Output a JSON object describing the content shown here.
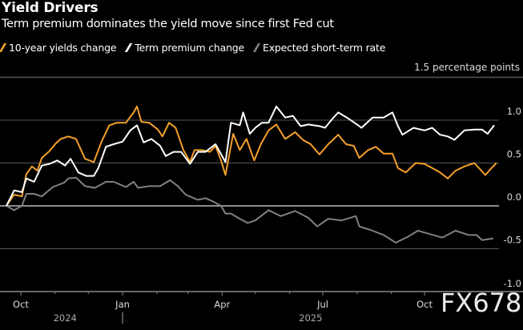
{
  "chart_data": {
    "type": "line",
    "title": "Yield Drivers",
    "subtitle": "Term premium dominates the yield move since first Fed cut",
    "ylabel": "1.5 percentage points",
    "ylim": [
      -1.0,
      1.5
    ],
    "yticks": [
      {
        "v": 1.0,
        "label": "1.0"
      },
      {
        "v": 0.5,
        "label": "0.5"
      },
      {
        "v": 0.0,
        "label": "0.0"
      },
      {
        "v": -0.5,
        "label": "-0.5"
      },
      {
        "v": -1.0,
        "label": "-1.0"
      }
    ],
    "xticks": [
      {
        "date": "2024-10-01",
        "label": "Oct"
      },
      {
        "date": "2025-01-01",
        "label": "Jan"
      },
      {
        "date": "2025-04-01",
        "label": "Apr"
      },
      {
        "date": "2025-07-01",
        "label": "Jul"
      },
      {
        "date": "2025-10-01",
        "label": "Oct"
      }
    ],
    "year_labels": [
      {
        "date": "2024-11-10",
        "label": "2024"
      },
      {
        "date": "2025-06-20",
        "label": "2025"
      }
    ],
    "grid": true,
    "legend_placement": "top-left",
    "series": [
      {
        "name": "10-year yields change",
        "color": "#f5a02a",
        "points": [
          [
            "2024-09-18",
            0.0
          ],
          [
            "2024-09-25",
            0.13
          ],
          [
            "2024-10-02",
            0.11
          ],
          [
            "2024-10-06",
            0.37
          ],
          [
            "2024-10-11",
            0.46
          ],
          [
            "2024-10-16",
            0.41
          ],
          [
            "2024-10-20",
            0.56
          ],
          [
            "2024-10-27",
            0.64
          ],
          [
            "2024-11-01",
            0.72
          ],
          [
            "2024-11-06",
            0.78
          ],
          [
            "2024-11-13",
            0.81
          ],
          [
            "2024-11-20",
            0.78
          ],
          [
            "2024-11-28",
            0.55
          ],
          [
            "2024-12-06",
            0.51
          ],
          [
            "2024-12-13",
            0.75
          ],
          [
            "2024-12-20",
            0.94
          ],
          [
            "2024-12-27",
            0.97
          ],
          [
            "2025-01-04",
            0.97
          ],
          [
            "2025-01-11",
            1.09
          ],
          [
            "2025-01-14",
            1.16
          ],
          [
            "2025-01-18",
            0.98
          ],
          [
            "2025-01-25",
            0.97
          ],
          [
            "2025-02-02",
            0.89
          ],
          [
            "2025-02-06",
            0.81
          ],
          [
            "2025-02-12",
            0.97
          ],
          [
            "2025-02-18",
            0.91
          ],
          [
            "2025-02-25",
            0.65
          ],
          [
            "2025-03-03",
            0.51
          ],
          [
            "2025-03-07",
            0.65
          ],
          [
            "2025-03-14",
            0.65
          ],
          [
            "2025-03-21",
            0.63
          ],
          [
            "2025-03-26",
            0.7
          ],
          [
            "2025-03-31",
            0.53
          ],
          [
            "2025-04-04",
            0.36
          ],
          [
            "2025-04-11",
            0.84
          ],
          [
            "2025-04-17",
            0.65
          ],
          [
            "2025-04-23",
            0.78
          ],
          [
            "2025-04-30",
            0.53
          ],
          [
            "2025-05-06",
            0.72
          ],
          [
            "2025-05-13",
            0.88
          ],
          [
            "2025-05-20",
            0.95
          ],
          [
            "2025-05-28",
            0.78
          ],
          [
            "2025-06-06",
            0.86
          ],
          [
            "2025-06-13",
            0.77
          ],
          [
            "2025-06-20",
            0.72
          ],
          [
            "2025-06-28",
            0.6
          ],
          [
            "2025-07-06",
            0.72
          ],
          [
            "2025-07-15",
            0.83
          ],
          [
            "2025-07-22",
            0.72
          ],
          [
            "2025-07-29",
            0.7
          ],
          [
            "2025-08-03",
            0.56
          ],
          [
            "2025-08-11",
            0.65
          ],
          [
            "2025-08-18",
            0.69
          ],
          [
            "2025-08-25",
            0.61
          ],
          [
            "2025-09-02",
            0.61
          ],
          [
            "2025-09-07",
            0.44
          ],
          [
            "2025-09-14",
            0.39
          ],
          [
            "2025-09-23",
            0.5
          ],
          [
            "2025-10-01",
            0.49
          ],
          [
            "2025-10-08",
            0.44
          ],
          [
            "2025-10-15",
            0.39
          ],
          [
            "2025-10-22",
            0.32
          ],
          [
            "2025-10-29",
            0.41
          ],
          [
            "2025-11-06",
            0.46
          ],
          [
            "2025-11-15",
            0.5
          ],
          [
            "2025-11-25",
            0.36
          ],
          [
            "2025-11-29",
            0.42
          ],
          [
            "2025-12-05",
            0.5
          ]
        ]
      },
      {
        "name": "Term premium change",
        "color": "#ffffff",
        "points": [
          [
            "2024-09-18",
            0.0
          ],
          [
            "2024-09-25",
            0.18
          ],
          [
            "2024-10-02",
            0.16
          ],
          [
            "2024-10-06",
            0.32
          ],
          [
            "2024-10-13",
            0.28
          ],
          [
            "2024-10-20",
            0.47
          ],
          [
            "2024-10-27",
            0.49
          ],
          [
            "2024-11-03",
            0.53
          ],
          [
            "2024-11-10",
            0.47
          ],
          [
            "2024-11-15",
            0.55
          ],
          [
            "2024-11-22",
            0.39
          ],
          [
            "2024-11-29",
            0.35
          ],
          [
            "2024-12-06",
            0.35
          ],
          [
            "2024-12-10",
            0.44
          ],
          [
            "2024-12-17",
            0.69
          ],
          [
            "2024-12-24",
            0.72
          ],
          [
            "2025-01-01",
            0.75
          ],
          [
            "2025-01-08",
            0.88
          ],
          [
            "2025-01-14",
            0.94
          ],
          [
            "2025-01-20",
            0.74
          ],
          [
            "2025-01-27",
            0.78
          ],
          [
            "2025-02-04",
            0.7
          ],
          [
            "2025-02-09",
            0.58
          ],
          [
            "2025-02-16",
            0.63
          ],
          [
            "2025-02-23",
            0.63
          ],
          [
            "2025-03-03",
            0.49
          ],
          [
            "2025-03-10",
            0.63
          ],
          [
            "2025-03-17",
            0.63
          ],
          [
            "2025-03-26",
            0.72
          ],
          [
            "2025-04-04",
            0.51
          ],
          [
            "2025-04-09",
            0.97
          ],
          [
            "2025-04-17",
            0.94
          ],
          [
            "2025-04-20",
            1.09
          ],
          [
            "2025-04-26",
            0.84
          ],
          [
            "2025-05-01",
            0.91
          ],
          [
            "2025-05-07",
            0.97
          ],
          [
            "2025-05-13",
            0.97
          ],
          [
            "2025-05-20",
            1.16
          ],
          [
            "2025-05-28",
            1.03
          ],
          [
            "2025-06-04",
            1.05
          ],
          [
            "2025-06-11",
            0.93
          ],
          [
            "2025-06-18",
            0.95
          ],
          [
            "2025-06-28",
            0.93
          ],
          [
            "2025-07-03",
            0.91
          ],
          [
            "2025-07-10",
            1.02
          ],
          [
            "2025-07-15",
            1.09
          ],
          [
            "2025-07-24",
            1.02
          ],
          [
            "2025-08-01",
            0.95
          ],
          [
            "2025-08-05",
            0.91
          ],
          [
            "2025-08-15",
            1.03
          ],
          [
            "2025-08-25",
            1.03
          ],
          [
            "2025-09-02",
            1.09
          ],
          [
            "2025-09-07",
            0.93
          ],
          [
            "2025-09-11",
            0.83
          ],
          [
            "2025-09-21",
            0.91
          ],
          [
            "2025-10-01",
            0.88
          ],
          [
            "2025-10-08",
            0.91
          ],
          [
            "2025-10-15",
            0.83
          ],
          [
            "2025-10-22",
            0.81
          ],
          [
            "2025-10-28",
            0.77
          ],
          [
            "2025-11-06",
            0.88
          ],
          [
            "2025-11-15",
            0.89
          ],
          [
            "2025-11-22",
            0.89
          ],
          [
            "2025-11-27",
            0.84
          ],
          [
            "2025-12-03",
            0.94
          ]
        ]
      },
      {
        "name": "Expected short-term rate",
        "color": "#808080",
        "points": [
          [
            "2024-09-18",
            0.0
          ],
          [
            "2024-09-25",
            -0.05
          ],
          [
            "2024-10-02",
            0.0
          ],
          [
            "2024-10-06",
            0.14
          ],
          [
            "2024-10-13",
            0.14
          ],
          [
            "2024-10-20",
            0.11
          ],
          [
            "2024-10-30",
            0.22
          ],
          [
            "2024-11-09",
            0.27
          ],
          [
            "2024-11-13",
            0.32
          ],
          [
            "2024-11-20",
            0.33
          ],
          [
            "2024-11-28",
            0.23
          ],
          [
            "2024-12-07",
            0.21
          ],
          [
            "2024-12-17",
            0.28
          ],
          [
            "2024-12-24",
            0.28
          ],
          [
            "2025-01-04",
            0.22
          ],
          [
            "2025-01-11",
            0.28
          ],
          [
            "2025-01-15",
            0.21
          ],
          [
            "2025-01-25",
            0.23
          ],
          [
            "2025-02-04",
            0.23
          ],
          [
            "2025-02-13",
            0.3
          ],
          [
            "2025-02-20",
            0.23
          ],
          [
            "2025-02-27",
            0.13
          ],
          [
            "2025-03-10",
            0.07
          ],
          [
            "2025-03-17",
            0.09
          ],
          [
            "2025-03-24",
            0.05
          ],
          [
            "2025-03-31",
            0.0
          ],
          [
            "2025-04-04",
            -0.09
          ],
          [
            "2025-04-09",
            -0.09
          ],
          [
            "2025-04-17",
            -0.15
          ],
          [
            "2025-04-24",
            -0.2
          ],
          [
            "2025-05-01",
            -0.17
          ],
          [
            "2025-05-13",
            -0.05
          ],
          [
            "2025-05-24",
            -0.12
          ],
          [
            "2025-06-06",
            -0.06
          ],
          [
            "2025-06-18",
            -0.14
          ],
          [
            "2025-06-26",
            -0.24
          ],
          [
            "2025-07-06",
            -0.15
          ],
          [
            "2025-07-18",
            -0.17
          ],
          [
            "2025-07-31",
            -0.12
          ],
          [
            "2025-08-03",
            -0.24
          ],
          [
            "2025-08-13",
            -0.28
          ],
          [
            "2025-08-25",
            -0.34
          ],
          [
            "2025-09-05",
            -0.43
          ],
          [
            "2025-09-16",
            -0.36
          ],
          [
            "2025-09-25",
            -0.29
          ],
          [
            "2025-10-06",
            -0.33
          ],
          [
            "2025-10-17",
            -0.37
          ],
          [
            "2025-10-29",
            -0.29
          ],
          [
            "2025-11-10",
            -0.34
          ],
          [
            "2025-11-17",
            -0.34
          ],
          [
            "2025-11-22",
            -0.4
          ],
          [
            "2025-12-02",
            -0.38
          ]
        ]
      }
    ]
  },
  "watermark": "FX678"
}
